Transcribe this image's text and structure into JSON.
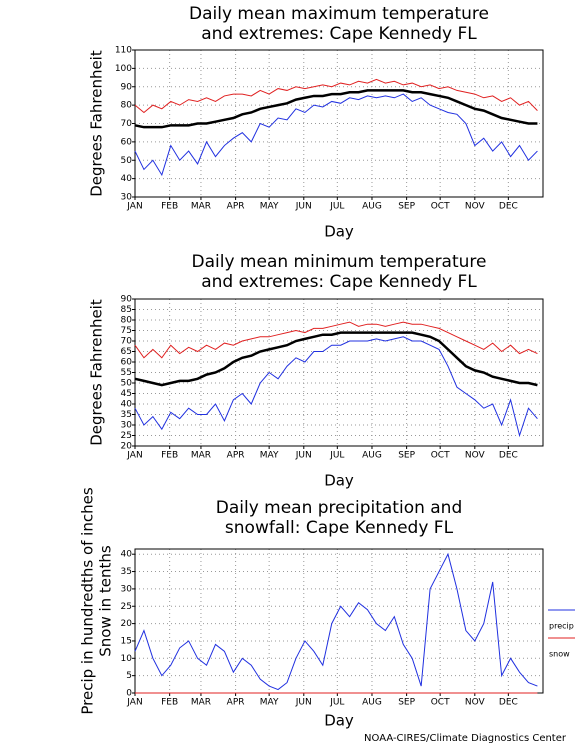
{
  "chart_data": [
    {
      "type": "line",
      "title": [
        "Daily mean maximum temperature",
        "and extremes: Cape Kennedy FL"
      ],
      "ylabel": [
        "Degrees Fahrenheit"
      ],
      "xlabel": "Day",
      "x": [
        1,
        9,
        17,
        25,
        33,
        41,
        49,
        57,
        65,
        73,
        81,
        89,
        97,
        105,
        113,
        121,
        129,
        137,
        145,
        153,
        161,
        169,
        177,
        185,
        193,
        201,
        209,
        217,
        225,
        233,
        241,
        249,
        257,
        265,
        273,
        281,
        289,
        297,
        305,
        313,
        321,
        329,
        337,
        345,
        353,
        361
      ],
      "xlim": [
        1,
        366
      ],
      "xticks": [
        {
          "value": 1,
          "label": "JAN"
        },
        {
          "value": 32,
          "label": "FEB"
        },
        {
          "value": 60,
          "label": "MAR"
        },
        {
          "value": 91,
          "label": "APR"
        },
        {
          "value": 121,
          "label": "MAY"
        },
        {
          "value": 152,
          "label": "JUN"
        },
        {
          "value": 182,
          "label": "JUL"
        },
        {
          "value": 213,
          "label": "AUG"
        },
        {
          "value": 244,
          "label": "SEP"
        },
        {
          "value": 274,
          "label": "OCT"
        },
        {
          "value": 305,
          "label": "NOV"
        },
        {
          "value": 335,
          "label": "DEC"
        }
      ],
      "ylim": [
        30,
        110
      ],
      "yticks": [
        30,
        40,
        50,
        60,
        70,
        80,
        90,
        100,
        110
      ],
      "grid": true,
      "series": [
        {
          "color": "#e02020",
          "values": [
            80,
            76,
            80,
            78,
            82,
            80,
            83,
            82,
            84,
            82,
            85,
            86,
            86,
            85,
            88,
            86,
            89,
            88,
            90,
            89,
            90,
            91,
            90,
            92,
            91,
            93,
            92,
            94,
            92,
            93,
            91,
            92,
            90,
            91,
            89,
            90,
            88,
            87,
            86,
            84,
            85,
            82,
            84,
            80,
            82,
            77
          ]
        },
        {
          "color": "#2030e0",
          "values": [
            55,
            45,
            50,
            42,
            58,
            50,
            55,
            48,
            60,
            52,
            58,
            62,
            65,
            60,
            70,
            68,
            73,
            72,
            78,
            76,
            80,
            79,
            82,
            81,
            84,
            83,
            85,
            84,
            85,
            84,
            86,
            82,
            84,
            80,
            78,
            76,
            75,
            70,
            58,
            62,
            55,
            60,
            52,
            58,
            50,
            55
          ]
        },
        {
          "color": "#000000",
          "values": [
            69,
            68,
            68,
            68,
            69,
            69,
            69,
            70,
            70,
            71,
            72,
            73,
            75,
            76,
            78,
            79,
            80,
            81,
            83,
            84,
            85,
            85,
            86,
            86,
            87,
            87,
            88,
            88,
            88,
            88,
            88,
            87,
            87,
            86,
            85,
            84,
            82,
            80,
            78,
            77,
            75,
            73,
            72,
            71,
            70,
            70
          ]
        }
      ]
    },
    {
      "type": "line",
      "title": [
        "Daily mean minimum temperature",
        "and extremes: Cape Kennedy FL"
      ],
      "ylabel": [
        "Degrees Fahrenheit"
      ],
      "xlabel": "Day",
      "x": [
        1,
        9,
        17,
        25,
        33,
        41,
        49,
        57,
        65,
        73,
        81,
        89,
        97,
        105,
        113,
        121,
        129,
        137,
        145,
        153,
        161,
        169,
        177,
        185,
        193,
        201,
        209,
        217,
        225,
        233,
        241,
        249,
        257,
        265,
        273,
        281,
        289,
        297,
        305,
        313,
        321,
        329,
        337,
        345,
        353,
        361
      ],
      "xlim": [
        1,
        366
      ],
      "xticks": [
        {
          "value": 1,
          "label": "JAN"
        },
        {
          "value": 32,
          "label": "FEB"
        },
        {
          "value": 60,
          "label": "MAR"
        },
        {
          "value": 91,
          "label": "APR"
        },
        {
          "value": 121,
          "label": "MAY"
        },
        {
          "value": 152,
          "label": "JUN"
        },
        {
          "value": 182,
          "label": "JUL"
        },
        {
          "value": 213,
          "label": "AUG"
        },
        {
          "value": 244,
          "label": "SEP"
        },
        {
          "value": 274,
          "label": "OCT"
        },
        {
          "value": 305,
          "label": "NOV"
        },
        {
          "value": 335,
          "label": "DEC"
        }
      ],
      "ylim": [
        20,
        90
      ],
      "yticks": [
        20,
        25,
        30,
        35,
        40,
        45,
        50,
        55,
        60,
        65,
        70,
        75,
        80,
        85,
        90
      ],
      "grid": true,
      "series": [
        {
          "color": "#e02020",
          "values": [
            68,
            62,
            66,
            62,
            68,
            64,
            67,
            65,
            68,
            66,
            69,
            68,
            70,
            71,
            72,
            72,
            73,
            74,
            75,
            74,
            76,
            76,
            77,
            78,
            79,
            77,
            78,
            78,
            77,
            78,
            79,
            78,
            78,
            77,
            76,
            74,
            72,
            70,
            68,
            66,
            69,
            65,
            68,
            64,
            66,
            64
          ]
        },
        {
          "color": "#2030e0",
          "values": [
            38,
            30,
            34,
            28,
            36,
            33,
            38,
            35,
            35,
            40,
            32,
            42,
            45,
            40,
            50,
            55,
            52,
            58,
            62,
            60,
            65,
            65,
            68,
            68,
            70,
            70,
            70,
            71,
            70,
            71,
            72,
            70,
            70,
            68,
            66,
            58,
            48,
            45,
            42,
            38,
            40,
            30,
            42,
            25,
            38,
            33
          ]
        },
        {
          "color": "#000000",
          "values": [
            52,
            51,
            50,
            49,
            50,
            51,
            51,
            52,
            54,
            55,
            57,
            60,
            62,
            63,
            65,
            66,
            67,
            68,
            70,
            71,
            72,
            73,
            73,
            74,
            74,
            74,
            74,
            74,
            74,
            74,
            74,
            74,
            73,
            72,
            70,
            66,
            62,
            58,
            56,
            55,
            53,
            52,
            51,
            50,
            50,
            49
          ]
        }
      ]
    },
    {
      "type": "line",
      "title": [
        "Daily mean precipitation and",
        "snowfall: Cape Kennedy FL"
      ],
      "ylabel": [
        "Precip in hundredths of inches",
        "Snow in tenths"
      ],
      "xlabel": "Day",
      "x": [
        1,
        9,
        17,
        25,
        33,
        41,
        49,
        57,
        65,
        73,
        81,
        89,
        97,
        105,
        113,
        121,
        129,
        137,
        145,
        153,
        161,
        169,
        177,
        185,
        193,
        201,
        209,
        217,
        225,
        233,
        241,
        249,
        257,
        265,
        273,
        281,
        289,
        297,
        305,
        313,
        321,
        329,
        337,
        345,
        353,
        361
      ],
      "xlim": [
        1,
        366
      ],
      "xticks": [
        {
          "value": 1,
          "label": "JAN"
        },
        {
          "value": 32,
          "label": "FEB"
        },
        {
          "value": 60,
          "label": "MAR"
        },
        {
          "value": 91,
          "label": "APR"
        },
        {
          "value": 121,
          "label": "MAY"
        },
        {
          "value": 152,
          "label": "JUN"
        },
        {
          "value": 182,
          "label": "JUL"
        },
        {
          "value": 213,
          "label": "AUG"
        },
        {
          "value": 244,
          "label": "SEP"
        },
        {
          "value": 274,
          "label": "OCT"
        },
        {
          "value": 305,
          "label": "NOV"
        },
        {
          "value": 335,
          "label": "DEC"
        }
      ],
      "ylim": [
        0,
        41.5
      ],
      "yticks": [
        0,
        5,
        10,
        15,
        20,
        25,
        30,
        35,
        40
      ],
      "grid": true,
      "legend": "right",
      "series": [
        {
          "name": "precip",
          "color": "#2030e0",
          "values": [
            12,
            18,
            10,
            5,
            8,
            13,
            15,
            10,
            8,
            14,
            12,
            6,
            10,
            8,
            4,
            2,
            1,
            3,
            10,
            15,
            12,
            8,
            20,
            25,
            22,
            26,
            24,
            20,
            18,
            22,
            14,
            10,
            2,
            30,
            35,
            40,
            30,
            18,
            15,
            20,
            32,
            5,
            10,
            6,
            3,
            2
          ]
        },
        {
          "name": "snow",
          "color": "#e02020",
          "values": [
            0,
            0,
            0,
            0,
            0,
            0,
            0,
            0,
            0,
            0,
            0,
            0,
            0,
            0,
            0,
            0,
            0,
            0,
            0,
            0,
            0,
            0,
            0,
            0,
            0,
            0,
            0,
            0,
            0,
            0,
            0,
            0,
            0,
            0,
            0,
            0,
            0,
            0,
            0,
            0,
            0,
            0,
            0,
            0,
            0,
            0
          ]
        }
      ]
    }
  ],
  "footer": "NOAA-CIRES/Climate Diagnostics Center"
}
